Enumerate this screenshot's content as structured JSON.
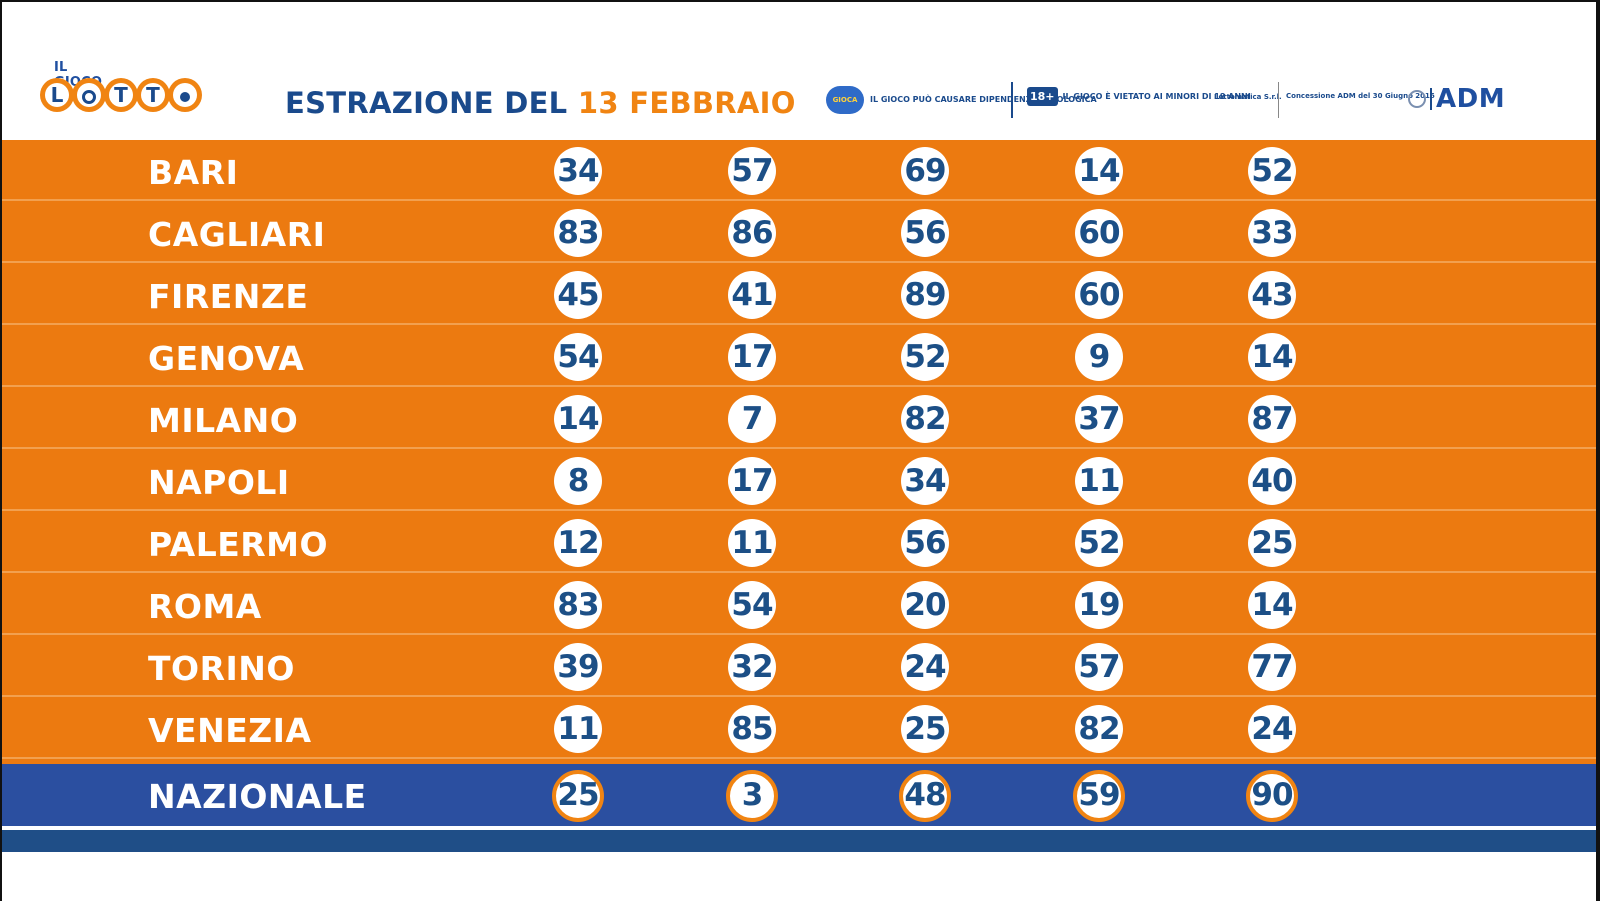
{
  "logo": {
    "small_text": "IL GIOCO DEL",
    "letters": [
      "L",
      "O",
      "T",
      "T",
      "O"
    ]
  },
  "header": {
    "title_prefix": "ESTRAZIONE DEL",
    "title_date": "13 FEBBRAIO",
    "warning_dependence": "IL GIOCO PUÒ CAUSARE DIPENDENZA PATOLOGICA",
    "age_badge": "18+",
    "warning_minors": "IL GIOCO È VIETATO AI MINORI DI 18 ANNI",
    "operator": "Lottomatica S.r.l.",
    "concession": "Concessione ADM del 30 Giugno 2016",
    "adm_label": "ADM"
  },
  "colors": {
    "orange": "#ec7a10",
    "navy": "#1c4f86",
    "national_blue": "#2b4fa0"
  },
  "wheels": [
    {
      "city": "BARI",
      "numbers": [
        "34",
        "57",
        "69",
        "14",
        "52"
      ]
    },
    {
      "city": "CAGLIARI",
      "numbers": [
        "83",
        "86",
        "56",
        "60",
        "33"
      ]
    },
    {
      "city": "FIRENZE",
      "numbers": [
        "45",
        "41",
        "89",
        "60",
        "43"
      ]
    },
    {
      "city": "GENOVA",
      "numbers": [
        "54",
        "17",
        "52",
        "9",
        "14"
      ]
    },
    {
      "city": "MILANO",
      "numbers": [
        "14",
        "7",
        "82",
        "37",
        "87"
      ]
    },
    {
      "city": "NAPOLI",
      "numbers": [
        "8",
        "17",
        "34",
        "11",
        "40"
      ]
    },
    {
      "city": "PALERMO",
      "numbers": [
        "12",
        "11",
        "56",
        "52",
        "25"
      ]
    },
    {
      "city": "ROMA",
      "numbers": [
        "83",
        "54",
        "20",
        "19",
        "14"
      ]
    },
    {
      "city": "TORINO",
      "numbers": [
        "39",
        "32",
        "24",
        "57",
        "77"
      ]
    },
    {
      "city": "VENEZIA",
      "numbers": [
        "11",
        "85",
        "25",
        "82",
        "24"
      ]
    }
  ],
  "nazionale": {
    "city": "NAZIONALE",
    "numbers": [
      "25",
      "3",
      "48",
      "59",
      "90"
    ]
  }
}
